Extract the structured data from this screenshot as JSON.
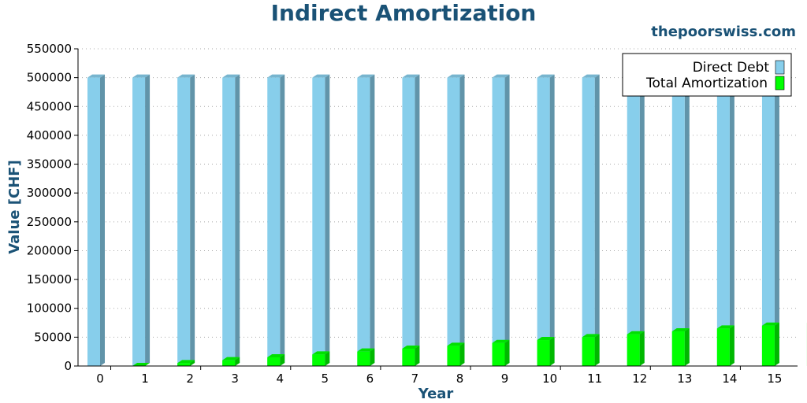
{
  "chart_data": {
    "type": "bar",
    "title": "Indirect Amortization",
    "source_label": "thepoorswiss.com",
    "xlabel": "Year",
    "ylabel": "Value [CHF]",
    "ylim": [
      0,
      550000
    ],
    "yticks": [
      0,
      50000,
      100000,
      150000,
      200000,
      250000,
      300000,
      350000,
      400000,
      450000,
      500000,
      550000
    ],
    "grid": "horizontal dotted",
    "legend_position": "top-right",
    "categories": [
      "0",
      "1",
      "2",
      "3",
      "4",
      "5",
      "6",
      "7",
      "8",
      "9",
      "10",
      "11",
      "12",
      "13",
      "14",
      "15"
    ],
    "series": [
      {
        "name": "Direct Debt",
        "color": "#87ceeb",
        "values": [
          500000,
          500000,
          500000,
          500000,
          500000,
          500000,
          500000,
          500000,
          500000,
          500000,
          500000,
          500000,
          500000,
          500000,
          500000,
          500000
        ]
      },
      {
        "name": "Total Amortization",
        "color": "#00ff00",
        "values": [
          0,
          5000,
          10000,
          15000,
          20000,
          25000,
          30000,
          35000,
          40000,
          45000,
          50000,
          55000,
          60000,
          65000,
          70000,
          75000
        ]
      }
    ]
  }
}
